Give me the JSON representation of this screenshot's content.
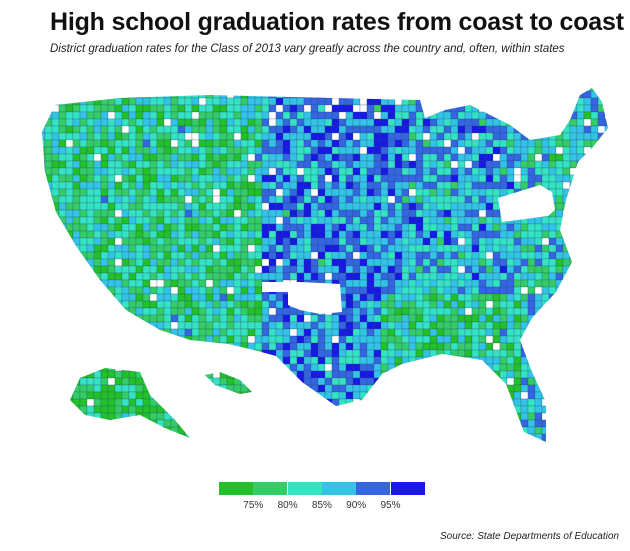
{
  "title": "High school graduation rates from coast to coast",
  "subtitle": "District graduation rates for the Class of 2013 vary greatly across the country and, often, within states",
  "legend": {
    "colors": [
      "#22c12a",
      "#33cc66",
      "#33e3c3",
      "#33c3e6",
      "#3366e0",
      "#1919e6"
    ],
    "ticks": [
      "75%",
      "80%",
      "85%",
      "90%",
      "95%"
    ]
  },
  "no_data_states": [
    "Oklahoma",
    "Pennsylvania"
  ],
  "source": "Source: State Departments of Education"
}
